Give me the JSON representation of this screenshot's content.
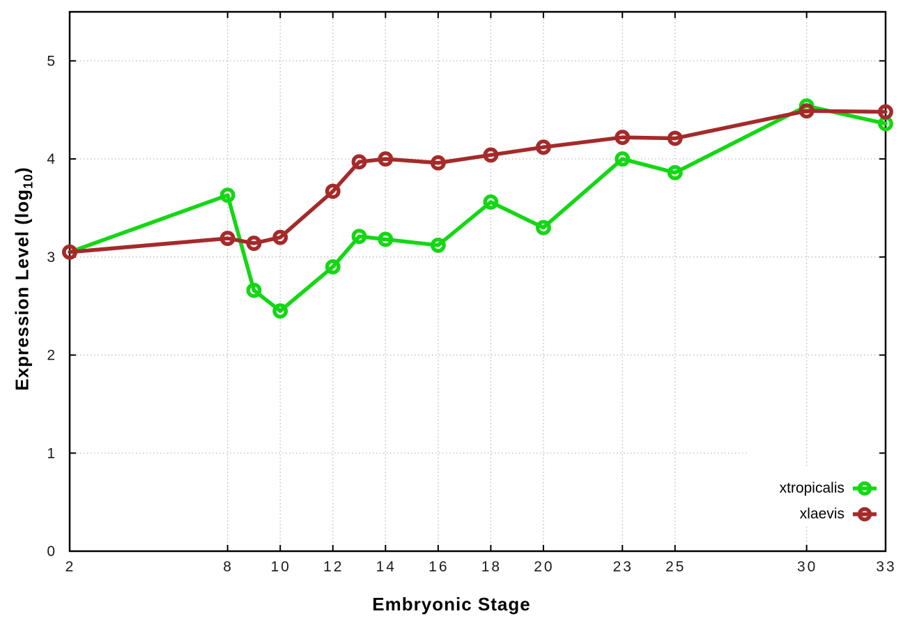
{
  "figure": {
    "xlabel": "Embryonic Stage",
    "ylabel_prefix": "Expression Level (log",
    "ylabel_sub": "10",
    "ylabel_suffix": ")",
    "background_color": "#ffffff",
    "border_color": "#000000",
    "grid_color": "#b9b9b9",
    "tick_label_color": "#1a1a1a"
  },
  "chart_data": {
    "type": "line",
    "title": "",
    "xlabel": "Embryonic Stage",
    "ylabel": "Expression Level (log10)",
    "x": [
      2,
      8,
      9,
      10,
      12,
      13,
      14,
      16,
      18,
      20,
      23,
      25,
      30,
      33
    ],
    "x_tick_labels": [
      2,
      8,
      10,
      12,
      14,
      16,
      18,
      20,
      23,
      25,
      30,
      33
    ],
    "y_tick_labels": [
      0,
      1,
      2,
      3,
      4,
      5
    ],
    "xlim": [
      2,
      33
    ],
    "ylim": [
      0,
      5.5
    ],
    "grid": "dotted",
    "legend_position": "inside bottom-right",
    "series": [
      {
        "name": "xtropicalis",
        "color": "#14d714",
        "marker": "open-circle",
        "values": [
          3.05,
          3.63,
          2.66,
          2.45,
          2.9,
          3.21,
          3.18,
          3.12,
          3.56,
          3.3,
          4.0,
          3.86,
          4.54,
          4.36
        ]
      },
      {
        "name": "xlaevis",
        "color": "#a52a2a",
        "marker": "open-circle",
        "values": [
          3.05,
          3.19,
          3.14,
          3.2,
          3.67,
          3.97,
          4.0,
          3.96,
          4.04,
          4.12,
          4.22,
          4.21,
          4.49,
          4.48
        ]
      }
    ]
  }
}
